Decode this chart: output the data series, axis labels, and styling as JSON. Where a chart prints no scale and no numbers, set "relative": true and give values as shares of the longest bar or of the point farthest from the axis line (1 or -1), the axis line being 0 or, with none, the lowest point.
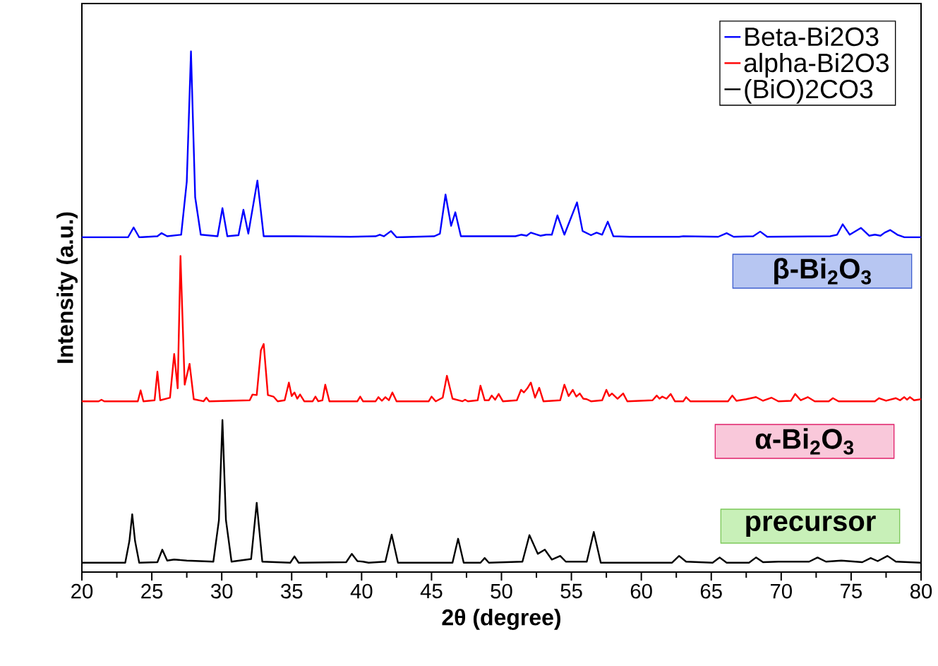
{
  "chart_data": {
    "type": "line",
    "relative": true,
    "xlabel": "2θ (degree)",
    "ylabel": "Intensity (a.u.)",
    "xlim": [
      20,
      80
    ],
    "xticks": [
      20,
      25,
      30,
      35,
      40,
      45,
      50,
      55,
      60,
      65,
      70,
      75,
      80
    ],
    "legend": "top right",
    "series": [
      {
        "name": "Beta-Bi2O3",
        "color": "#0000ff",
        "x": [
          20,
          23.3,
          23.7,
          24.1,
          25.4,
          25.7,
          26.1,
          27.1,
          27.5,
          27.8,
          28.1,
          28.5,
          29.7,
          30.05,
          30.4,
          31.2,
          31.55,
          31.9,
          32.55,
          33.0,
          35.2,
          39.2,
          41.0,
          41.3,
          41.6,
          42.1,
          42.5,
          45.2,
          45.6,
          46.0,
          46.4,
          46.7,
          47.1,
          51.0,
          51.4,
          51.8,
          52.1,
          52.8,
          53.2,
          53.6,
          54.0,
          54.5,
          55.4,
          55.8,
          56.4,
          56.8,
          57.2,
          57.6,
          58.0,
          59.2,
          62.7,
          63.0,
          65.5,
          66.1,
          66.6,
          68.0,
          68.5,
          69.0,
          73.5,
          74.0,
          74.4,
          74.9,
          75.7,
          76.3,
          76.7,
          77.1,
          77.4,
          77.8,
          78.3,
          78.8,
          80
        ],
        "values": [
          0.643,
          0.643,
          0.662,
          0.643,
          0.645,
          0.651,
          0.645,
          0.648,
          0.75,
          1.0,
          0.72,
          0.648,
          0.645,
          0.699,
          0.645,
          0.647,
          0.696,
          0.65,
          0.752,
          0.645,
          0.645,
          0.644,
          0.645,
          0.648,
          0.645,
          0.655,
          0.643,
          0.645,
          0.65,
          0.725,
          0.665,
          0.691,
          0.645,
          0.645,
          0.648,
          0.646,
          0.652,
          0.646,
          0.648,
          0.648,
          0.685,
          0.648,
          0.71,
          0.655,
          0.647,
          0.652,
          0.648,
          0.673,
          0.645,
          0.644,
          0.644,
          0.645,
          0.644,
          0.651,
          0.644,
          0.645,
          0.654,
          0.644,
          0.645,
          0.648,
          0.668,
          0.648,
          0.661,
          0.646,
          0.648,
          0.646,
          0.652,
          0.657,
          0.648,
          0.643,
          0.643
        ]
      },
      {
        "name": "alpha-Bi2O3",
        "color": "#ff0000",
        "x": [
          20,
          21.2,
          21.4,
          21.6,
          24.0,
          24.2,
          24.4,
          25.2,
          25.4,
          25.6,
          26.3,
          26.6,
          26.85,
          27.05,
          27.35,
          27.7,
          28.0,
          28.7,
          28.9,
          29.1,
          32.0,
          32.2,
          32.5,
          32.8,
          33.0,
          33.3,
          33.7,
          34.0,
          34.5,
          34.8,
          35.0,
          35.2,
          35.4,
          35.6,
          35.9,
          36.5,
          36.7,
          36.9,
          37.2,
          37.4,
          37.7,
          39.7,
          39.9,
          40.1,
          41.0,
          41.2,
          41.45,
          41.7,
          41.95,
          42.2,
          42.5,
          44.8,
          45.0,
          45.3,
          45.8,
          46.1,
          46.5,
          47.2,
          47.4,
          47.6,
          48.3,
          48.5,
          48.8,
          49.1,
          49.3,
          49.55,
          49.8,
          50.1,
          51.1,
          51.4,
          51.6,
          51.85,
          52.1,
          52.4,
          52.7,
          53.0,
          54.2,
          54.5,
          54.8,
          55.1,
          55.35,
          55.6,
          55.85,
          56.1,
          56.4,
          57.2,
          57.5,
          57.7,
          57.9,
          58.3,
          58.7,
          59.0,
          60.8,
          61.1,
          61.3,
          61.5,
          61.8,
          62.1,
          62.4,
          63.0,
          63.2,
          63.5,
          66.2,
          66.5,
          66.8,
          67.5,
          68.2,
          68.7,
          69.3,
          69.8,
          70.7,
          71.0,
          71.4,
          71.9,
          72.4,
          73.4,
          73.7,
          74.1,
          76.7,
          77.0,
          77.5,
          78.2,
          78.5,
          78.8,
          79.0,
          79.2,
          79.5,
          80
        ],
        "values": [
          0.328,
          0.328,
          0.331,
          0.328,
          0.328,
          0.349,
          0.328,
          0.33,
          0.385,
          0.33,
          0.335,
          0.419,
          0.353,
          0.607,
          0.36,
          0.4,
          0.332,
          0.328,
          0.335,
          0.328,
          0.33,
          0.341,
          0.34,
          0.426,
          0.438,
          0.34,
          0.337,
          0.328,
          0.33,
          0.364,
          0.338,
          0.345,
          0.333,
          0.341,
          0.328,
          0.328,
          0.337,
          0.328,
          0.33,
          0.36,
          0.328,
          0.328,
          0.337,
          0.328,
          0.328,
          0.336,
          0.329,
          0.336,
          0.33,
          0.345,
          0.328,
          0.328,
          0.337,
          0.328,
          0.335,
          0.377,
          0.333,
          0.328,
          0.331,
          0.328,
          0.33,
          0.358,
          0.33,
          0.33,
          0.339,
          0.331,
          0.342,
          0.328,
          0.33,
          0.35,
          0.345,
          0.353,
          0.364,
          0.335,
          0.354,
          0.328,
          0.33,
          0.36,
          0.338,
          0.35,
          0.337,
          0.343,
          0.333,
          0.332,
          0.328,
          0.33,
          0.35,
          0.338,
          0.343,
          0.333,
          0.343,
          0.328,
          0.33,
          0.339,
          0.333,
          0.337,
          0.333,
          0.342,
          0.328,
          0.328,
          0.336,
          0.328,
          0.328,
          0.339,
          0.329,
          0.332,
          0.336,
          0.329,
          0.335,
          0.328,
          0.329,
          0.342,
          0.33,
          0.336,
          0.328,
          0.328,
          0.334,
          0.328,
          0.328,
          0.334,
          0.329,
          0.334,
          0.33,
          0.336,
          0.331,
          0.336,
          0.33,
          0.332
        ]
      },
      {
        "name": "(BiO)2CO3",
        "color": "#000000",
        "x": [
          20,
          23.1,
          23.4,
          23.6,
          23.8,
          24.1,
          25.4,
          25.75,
          26.1,
          26.6,
          27.5,
          29.4,
          29.8,
          30.05,
          30.3,
          30.7,
          32.1,
          32.5,
          32.9,
          34.9,
          35.2,
          35.5,
          38.9,
          39.3,
          39.7,
          40.1,
          40.5,
          41.7,
          42.15,
          42.6,
          46.5,
          46.9,
          47.3,
          48.5,
          48.8,
          49.1,
          51.5,
          52.0,
          52.6,
          53.1,
          53.6,
          54.2,
          54.6,
          56.1,
          56.6,
          57.1,
          62.2,
          62.7,
          63.2,
          65.1,
          65.6,
          66.1,
          67.7,
          68.2,
          68.7,
          69.8,
          72.0,
          72.6,
          73.2,
          74.3,
          75.8,
          76.4,
          76.9,
          77.6,
          78.2,
          80
        ],
        "values": [
          0.018,
          0.018,
          0.06,
          0.111,
          0.06,
          0.018,
          0.019,
          0.043,
          0.022,
          0.024,
          0.022,
          0.02,
          0.1,
          0.292,
          0.1,
          0.02,
          0.025,
          0.133,
          0.02,
          0.018,
          0.03,
          0.018,
          0.019,
          0.035,
          0.021,
          0.02,
          0.018,
          0.02,
          0.072,
          0.018,
          0.018,
          0.064,
          0.018,
          0.018,
          0.027,
          0.018,
          0.02,
          0.071,
          0.035,
          0.043,
          0.024,
          0.031,
          0.02,
          0.02,
          0.077,
          0.018,
          0.018,
          0.031,
          0.02,
          0.018,
          0.028,
          0.018,
          0.018,
          0.028,
          0.019,
          0.02,
          0.02,
          0.028,
          0.02,
          0.022,
          0.019,
          0.027,
          0.021,
          0.031,
          0.02,
          0.018
        ]
      }
    ],
    "annotations": [
      "β-Bi$_{2}$O$_{3}$",
      "α-Bi$_{2}$O$_{3}$",
      "precursor"
    ]
  }
}
